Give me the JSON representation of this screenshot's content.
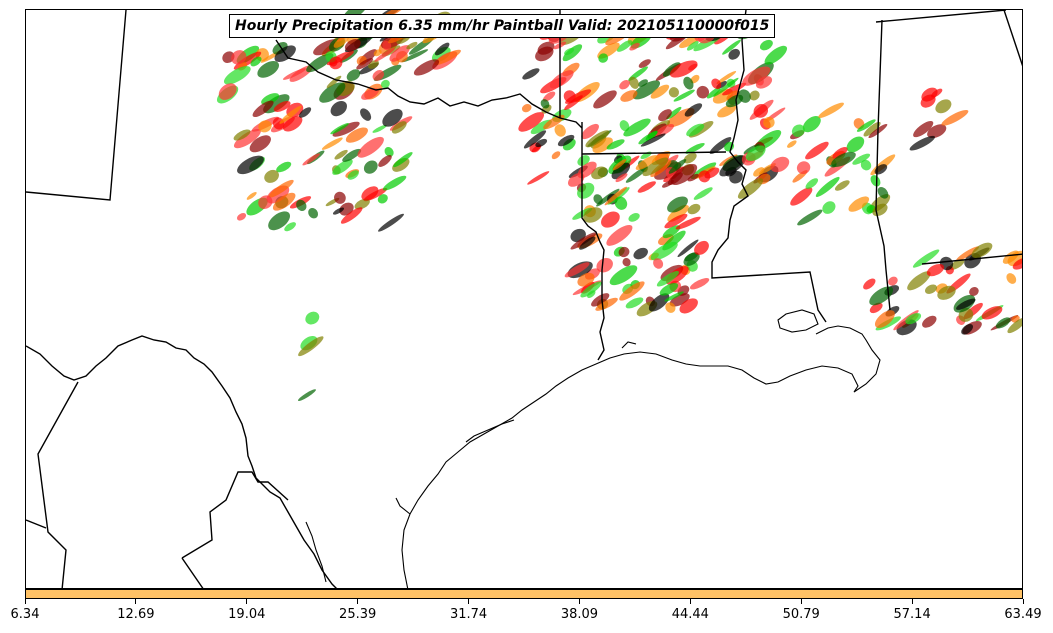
{
  "title": "Hourly Precipitation 6.35 mm/hr Paintball Valid: 202105110000f015",
  "colorbar": {
    "color": "#ffc266",
    "ticks": [
      "6.34",
      "12.69",
      "19.04",
      "25.39",
      "31.74",
      "38.09",
      "44.44",
      "50.79",
      "57.14",
      "63.49"
    ]
  },
  "member_colors": [
    "#ff0000",
    "#ff6600",
    "#ff8c00",
    "#00cc00",
    "#006400",
    "#808000",
    "#8b0000",
    "#000000",
    "#ff3333",
    "#22dd22"
  ]
}
